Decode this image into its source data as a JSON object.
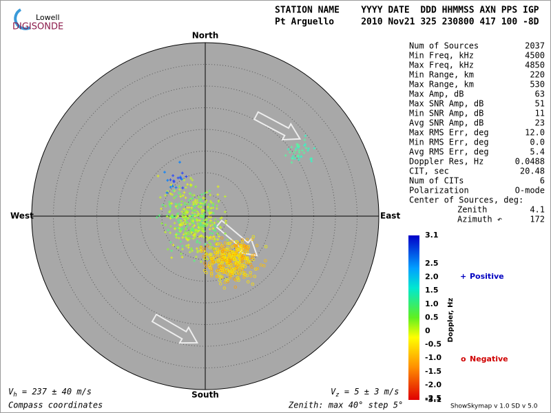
{
  "header": {
    "logo_top": "Lowell",
    "logo_bottom": "DIGISONDE",
    "line1": "STATION NAME    YYYY DATE  DDD HHMMSS AXN PPS IGP",
    "line2": "Pt Arguello     2010 Nov21 325 230800 417 100 -8D"
  },
  "compass": {
    "north": "North",
    "south": "South",
    "east": "East",
    "west": "West"
  },
  "stats": {
    "rows": [
      [
        "Num of Sources",
        "2037"
      ],
      [
        "Min Freq, kHz",
        "4500"
      ],
      [
        "Max Freq, kHz",
        "4850"
      ],
      [
        "Min Range, km",
        "220"
      ],
      [
        "Max Range, km",
        "530"
      ],
      [
        "Max Amp, dB",
        "63"
      ],
      [
        "Max SNR Amp, dB",
        "51"
      ],
      [
        "Min SNR Amp, dB",
        "11"
      ],
      [
        "Avg SNR Amp, dB",
        "23"
      ],
      [
        "Max RMS Err, deg",
        "12.0"
      ],
      [
        "Min RMS Err, deg",
        "0.0"
      ],
      [
        "Avg RMS Err, deg",
        "5.4"
      ],
      [
        "Doppler Res, Hz",
        "0.0488"
      ],
      [
        "CIT, sec",
        "20.48"
      ],
      [
        "Num of CITs",
        "6"
      ],
      [
        "Polarization",
        "O-mode"
      ]
    ],
    "center_title": "Center of Sources, deg:",
    "center_rows": [
      [
        "Zenith",
        "4.1"
      ],
      [
        "Azimuth ↶",
        "172"
      ]
    ]
  },
  "colorbar": {
    "label": "Doppler, Hz",
    "ticks": [
      "3.1",
      "2.5",
      "2.0",
      "1.5",
      "1.0",
      "0.5",
      "0",
      "-0.5",
      "-1.0",
      "-1.5",
      "-2.0",
      "-2.5",
      "-3.1"
    ]
  },
  "legend": {
    "positive_symbol": "+",
    "positive": "Positive",
    "negative_symbol": "o",
    "negative": "Negative"
  },
  "footer": {
    "vh_v": "V",
    "vh_sub": "h",
    "vh_rest": " = 237 ± 40 m/s",
    "vz_v": "V",
    "vz_sub": "z",
    "vz_rest": " = 5 ± 3 m/s",
    "coords": "Compass coordinates",
    "zenith": "Zenith: max 40°  step 5°",
    "version": "ShowSkymap v 1.0   SD v 5.0"
  }
}
